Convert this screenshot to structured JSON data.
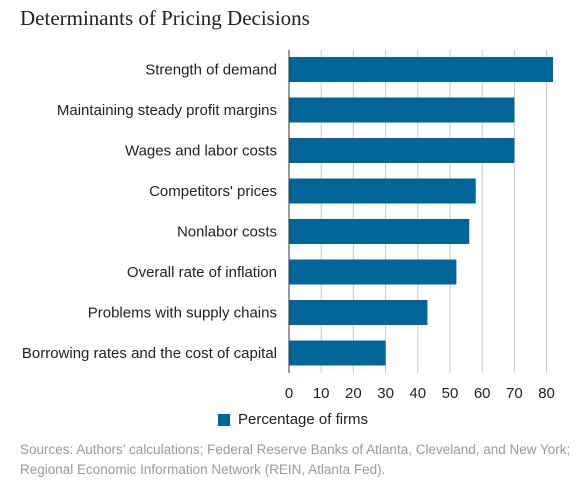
{
  "chart_data": {
    "type": "bar",
    "orientation": "horizontal",
    "title": "Determinants of Pricing Decisions",
    "categories": [
      "Strength of demand",
      "Maintaining steady profit margins",
      "Wages and labor costs",
      "Competitors' prices",
      "Nonlabor costs",
      "Overall rate of inflation",
      "Problems with supply chains",
      "Borrowing rates and the cost of capital"
    ],
    "series": [
      {
        "name": "Percentage of firms",
        "values": [
          82,
          70,
          70,
          58,
          56,
          52,
          43,
          30
        ]
      }
    ],
    "xlim": [
      0,
      82
    ],
    "xticks": [
      0,
      10,
      20,
      30,
      40,
      50,
      60,
      70,
      80
    ],
    "xlabel": "",
    "ylabel": "",
    "grid": true,
    "legend_position": "bottom"
  },
  "source": {
    "line1": "Sources: Authors’ calculations; Federal Reserve Banks of Atlanta, Cleveland, and New York;",
    "line2": "Regional Economic Information Network (REIN, Atlanta Fed)."
  },
  "colors": {
    "bar": "#006699",
    "grid": "#c8c8c8",
    "axis": "#333333",
    "text": "#222222",
    "source_text": "#9a9a9a"
  }
}
